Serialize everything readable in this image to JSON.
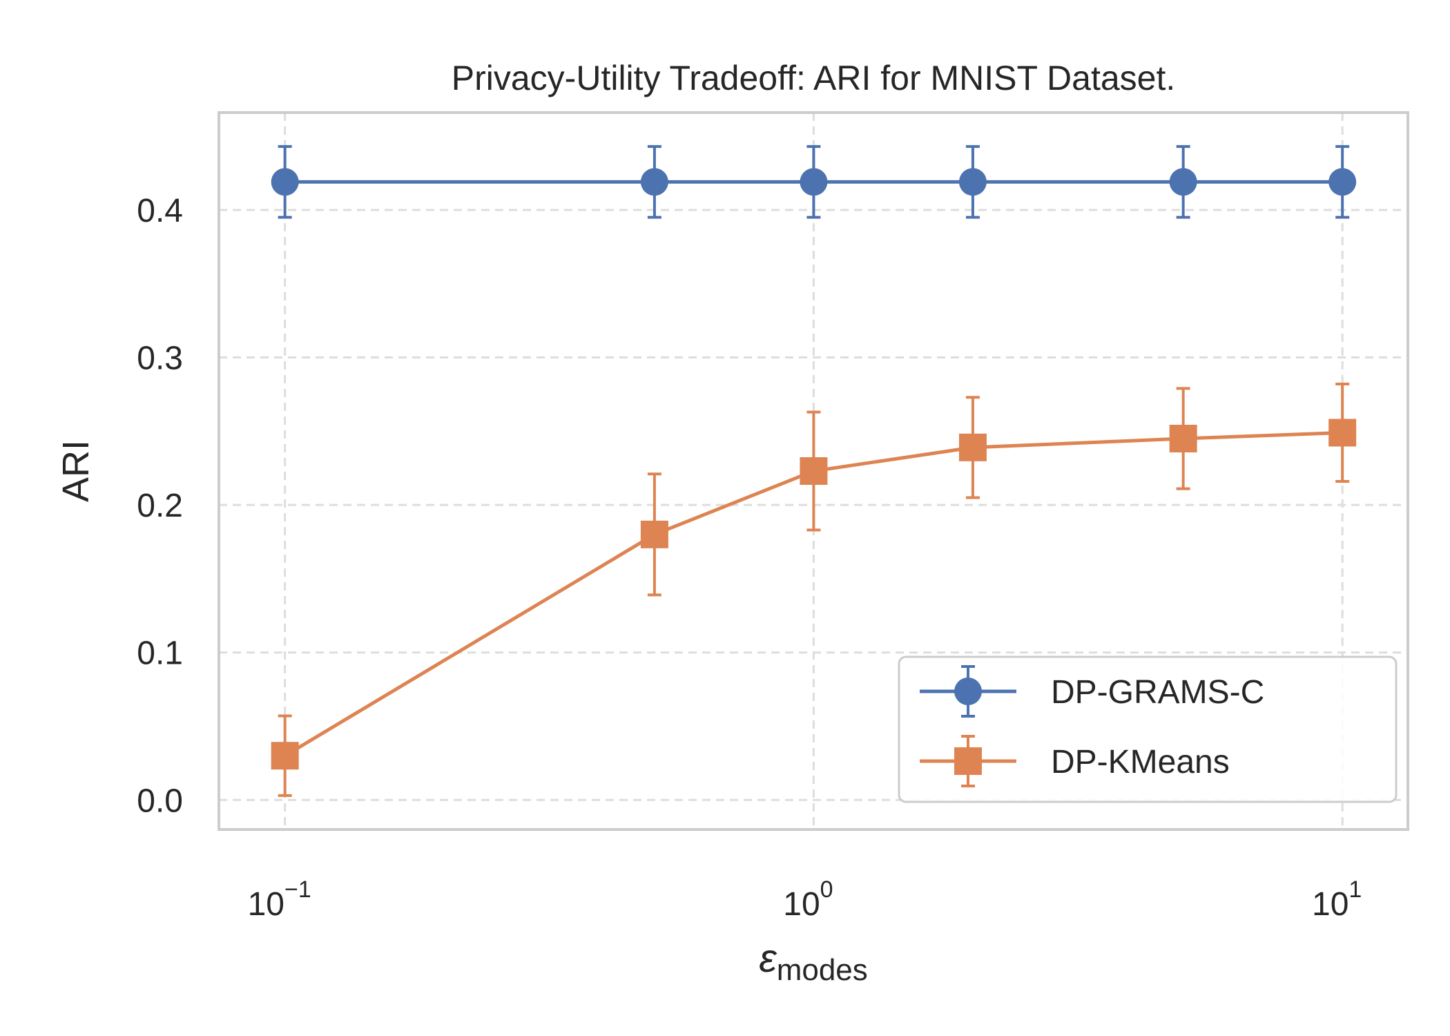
{
  "chart_data": {
    "type": "line",
    "title": "Privacy-Utility Tradeoff: ARI for MNIST Dataset.",
    "xlabel": {
      "symbol": "ε",
      "subscript": "modes"
    },
    "ylabel": "ARI",
    "xscale": "log",
    "xlim": [
      0.075,
      13.3
    ],
    "ylim": [
      -0.02,
      0.466
    ],
    "x_ticks": [
      {
        "value": 0.1,
        "base": "10",
        "exp": "−1"
      },
      {
        "value": 1,
        "base": "10",
        "exp": "0"
      },
      {
        "value": 10,
        "base": "10",
        "exp": "1"
      }
    ],
    "y_ticks": [
      {
        "value": 0.0,
        "label": "0.0"
      },
      {
        "value": 0.1,
        "label": "0.1"
      },
      {
        "value": 0.2,
        "label": "0.2"
      },
      {
        "value": 0.3,
        "label": "0.3"
      },
      {
        "value": 0.4,
        "label": "0.4"
      }
    ],
    "grid": true,
    "legend_position": "bottom-right",
    "x": [
      0.1,
      0.5,
      1,
      2,
      5,
      10
    ],
    "series": [
      {
        "name": "DP-GRAMS-C",
        "marker": "circle",
        "color": "#4c72b0",
        "values": [
          0.419,
          0.419,
          0.419,
          0.419,
          0.419,
          0.419
        ],
        "errors": [
          0.024,
          0.024,
          0.024,
          0.024,
          0.024,
          0.024
        ]
      },
      {
        "name": "DP-KMeans",
        "marker": "square",
        "color": "#dd8452",
        "values": [
          0.03,
          0.18,
          0.223,
          0.239,
          0.245,
          0.249
        ],
        "errors": [
          0.027,
          0.041,
          0.04,
          0.034,
          0.034,
          0.033
        ]
      }
    ]
  }
}
